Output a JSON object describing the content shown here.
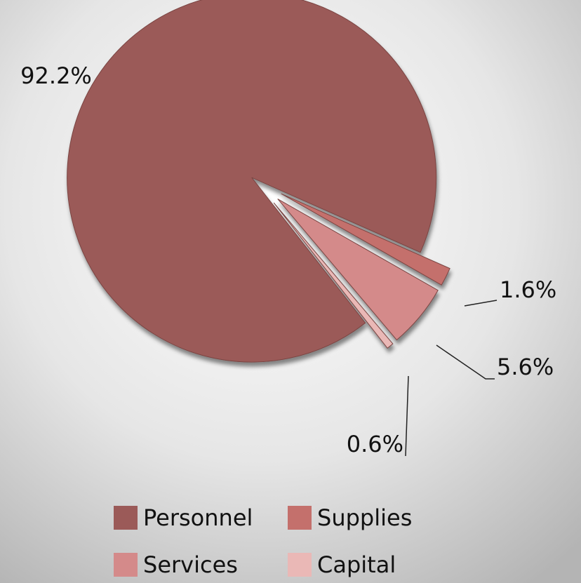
{
  "chart_data": {
    "type": "pie",
    "categories": [
      "Personnel",
      "Supplies",
      "Services",
      "Capital"
    ],
    "values": [
      92.2,
      1.6,
      5.6,
      0.6
    ],
    "value_labels": [
      "92.2%",
      "1.6%",
      "5.6%",
      "0.6%"
    ],
    "colors": [
      "#9b5a58",
      "#c4706c",
      "#d48a8a",
      "#eab8b6"
    ],
    "legend": "bottom"
  }
}
